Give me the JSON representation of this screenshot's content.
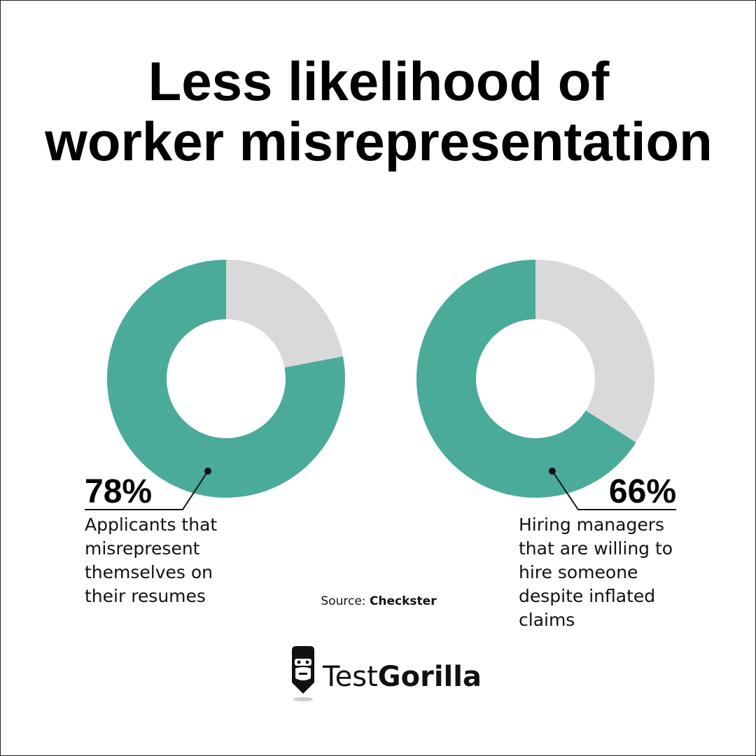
{
  "title": "Less likelihood of worker misrepresentation",
  "chart_data": [
    {
      "type": "donut",
      "values": [
        78
      ],
      "value_labels": [
        "78%"
      ],
      "categories": [
        "Applicants that misrepresent themselves on their resumes"
      ],
      "color": "#4aab9a",
      "track_color": "#d9d9d9"
    },
    {
      "type": "donut",
      "values": [
        66
      ],
      "value_labels": [
        "66%"
      ],
      "categories": [
        "Hiring managers that are willing to hire someone despite inflated claims"
      ],
      "color": "#4aab9a",
      "track_color": "#d9d9d9"
    }
  ],
  "source": {
    "label": "Source:",
    "name": "Checkster"
  },
  "brand": {
    "first": "Test",
    "second": "Gorilla"
  }
}
